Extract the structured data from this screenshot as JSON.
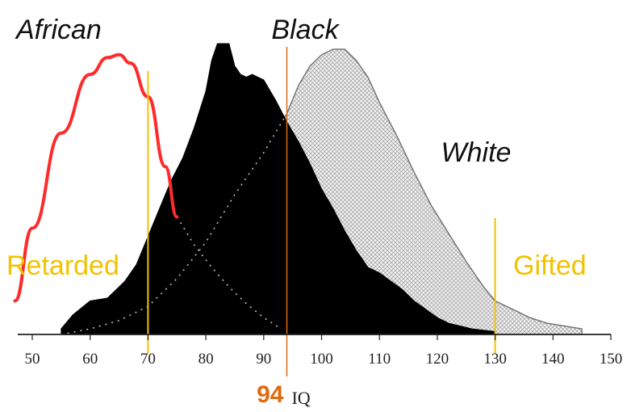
{
  "chart_data": {
    "type": "area",
    "xlabel": "IQ",
    "xlim": [
      50,
      150
    ],
    "xticks": [
      "50",
      "60",
      "70",
      "80",
      "90",
      "100",
      "110",
      "120",
      "130",
      "140",
      "150"
    ],
    "series": [
      {
        "name": "African",
        "style": "line",
        "color": "#ff2a2a",
        "x": [
          47,
          50,
          55,
          60,
          63,
          65,
          67,
          70,
          73,
          75
        ],
        "y": [
          0.12,
          0.38,
          0.72,
          0.93,
          0.99,
          1.0,
          0.97,
          0.85,
          0.6,
          0.42
        ]
      },
      {
        "name": "Black",
        "style": "filled",
        "color": "#000000",
        "x": [
          55,
          57,
          60,
          63,
          66,
          68,
          70,
          72,
          74,
          76,
          78,
          80,
          81,
          82,
          83,
          84,
          85,
          86,
          87,
          88,
          90,
          92,
          94,
          96,
          98,
          100,
          102,
          104,
          106,
          108,
          110,
          112,
          114,
          116,
          118,
          120,
          122,
          124,
          126,
          128,
          130
        ],
        "y": [
          0.02,
          0.07,
          0.12,
          0.13,
          0.19,
          0.25,
          0.35,
          0.45,
          0.55,
          0.63,
          0.74,
          0.87,
          0.98,
          1.04,
          1.04,
          1.04,
          0.96,
          0.93,
          0.92,
          0.93,
          0.91,
          0.84,
          0.76,
          0.69,
          0.61,
          0.52,
          0.45,
          0.37,
          0.3,
          0.24,
          0.22,
          0.19,
          0.16,
          0.12,
          0.09,
          0.06,
          0.04,
          0.03,
          0.02,
          0.015,
          0.01
        ]
      },
      {
        "name": "White",
        "style": "hatched",
        "color": "#6e6e6e",
        "x": [
          55,
          60,
          65,
          70,
          75,
          80,
          85,
          90,
          92,
          94,
          96,
          98,
          100,
          102,
          104,
          106,
          108,
          110,
          113,
          116,
          119,
          122,
          125,
          128,
          130,
          133,
          136,
          139,
          142,
          145
        ],
        "y": [
          0.0,
          0.02,
          0.05,
          0.1,
          0.2,
          0.33,
          0.5,
          0.65,
          0.72,
          0.79,
          0.89,
          0.96,
          1.0,
          1.02,
          1.02,
          0.98,
          0.92,
          0.83,
          0.71,
          0.58,
          0.46,
          0.36,
          0.26,
          0.17,
          0.12,
          0.09,
          0.06,
          0.04,
          0.03,
          0.02
        ]
      }
    ],
    "vertical_markers": [
      {
        "x": 70,
        "label": "Retarded",
        "color": "#f2c200"
      },
      {
        "x": 130,
        "label": "Gifted",
        "color": "#f2c200"
      },
      {
        "x": 94,
        "label": "94",
        "color": "#e06a10"
      }
    ]
  }
}
